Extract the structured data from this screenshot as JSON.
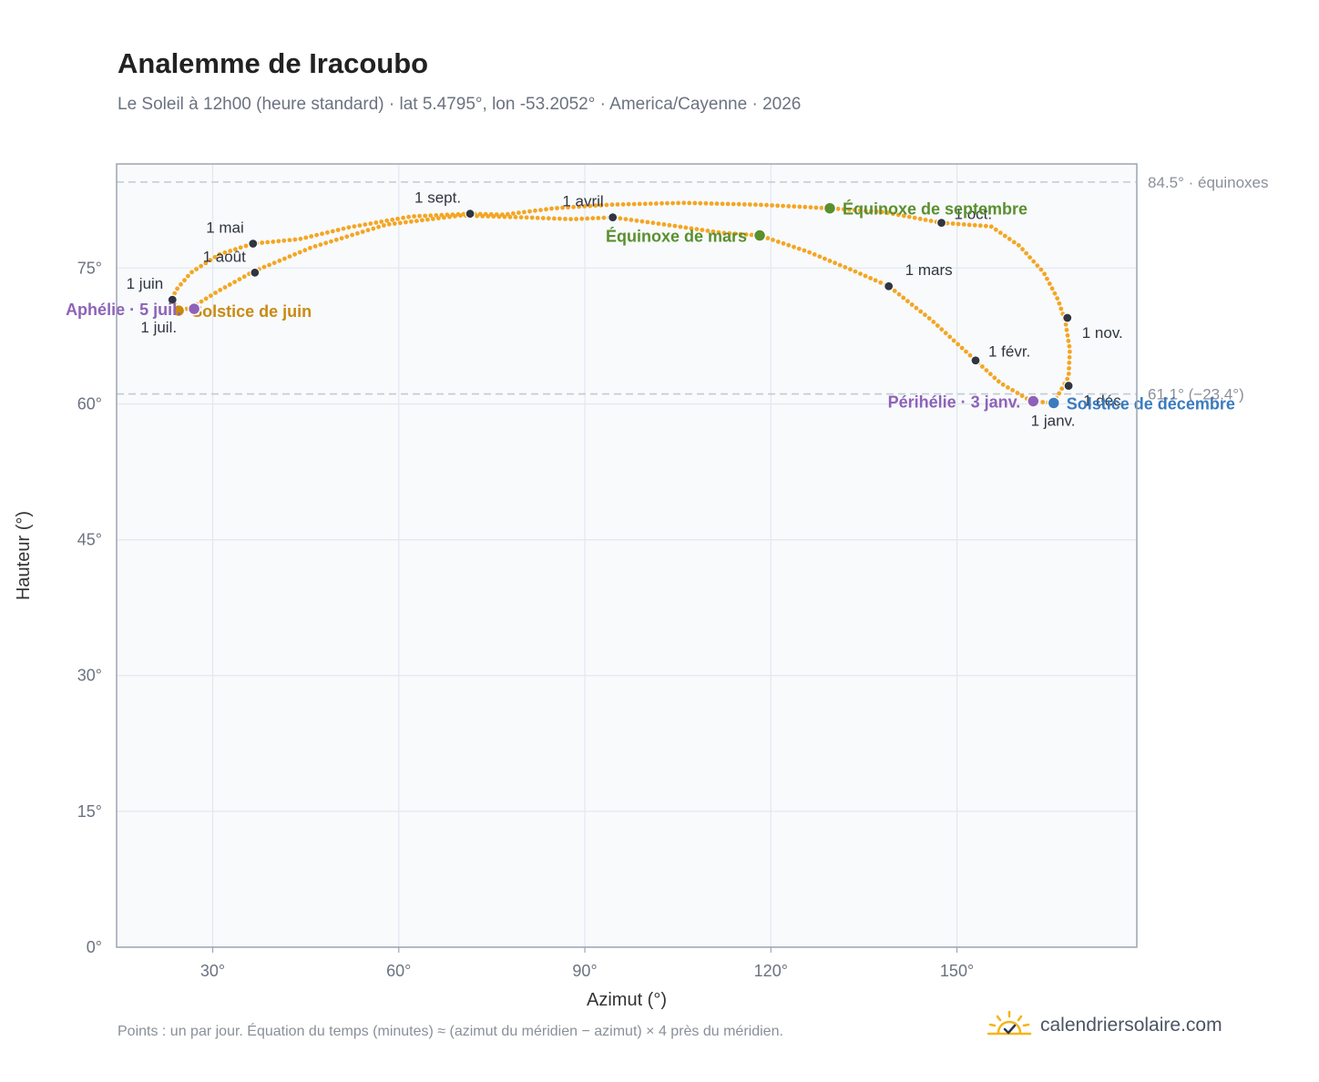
{
  "header": {
    "title": "Analemme de Iracoubo",
    "subtitle": "Le Soleil à 12h00 (heure standard) · lat 5.4795°, lon -53.2052° · America/Cayenne · 2026"
  },
  "footer": {
    "note": "Points : un par jour. Équation du temps (minutes) ≈ (azimut du méridien − azimut) × 4 près du méridien.",
    "brand": "calendriersolaire.com",
    "brand_icon": "sun-check-icon"
  },
  "chart_data": {
    "type": "scatter",
    "xlabel": "Azimut (°)",
    "ylabel": "Hauteur (°)",
    "xlim": [
      14.5,
      179
    ],
    "ylim": [
      0,
      86.5
    ],
    "x_ticks": [
      30,
      60,
      90,
      120,
      150
    ],
    "x_tick_labels": [
      "30°",
      "60°",
      "90°",
      "120°",
      "150°"
    ],
    "y_ticks": [
      0,
      15,
      30,
      45,
      60,
      75
    ],
    "y_tick_labels": [
      "0°",
      "15°",
      "30°",
      "45°",
      "60°",
      "75°"
    ],
    "grid": true,
    "reference_lines": [
      {
        "y": 84.5,
        "label": "84.5° · équinoxes"
      },
      {
        "y": 61.1,
        "label": "61.1° (−23.4°)"
      }
    ],
    "series": [
      {
        "style": "daily-dots",
        "color": "#f4a623",
        "path": [
          [
            165.6,
            60.1
          ],
          [
            168.0,
            63.0
          ],
          [
            168.2,
            66.0
          ],
          [
            167.5,
            69.0
          ],
          [
            166.3,
            71.5
          ],
          [
            164.0,
            74.5
          ],
          [
            160.0,
            77.5
          ],
          [
            155.5,
            79.6
          ],
          [
            147.5,
            80.0
          ],
          [
            138.0,
            81.2
          ],
          [
            129.5,
            81.6
          ],
          [
            118.0,
            82.0
          ],
          [
            106.0,
            82.2
          ],
          [
            94.0,
            82.0
          ],
          [
            85.0,
            81.6
          ],
          [
            77.0,
            80.9
          ],
          [
            71.5,
            81.0
          ],
          [
            62.0,
            80.7
          ],
          [
            52.0,
            79.5
          ],
          [
            44.0,
            78.2
          ],
          [
            36.5,
            77.7
          ],
          [
            31.0,
            76.5
          ],
          [
            26.5,
            74.5
          ],
          [
            24.0,
            72.5
          ],
          [
            23.5,
            71.5
          ],
          [
            24.5,
            70.3
          ],
          [
            26.5,
            70.6
          ],
          [
            31.0,
            72.5
          ],
          [
            36.5,
            74.6
          ],
          [
            46.0,
            77.3
          ],
          [
            58.0,
            79.8
          ],
          [
            70.0,
            80.8
          ],
          [
            80.0,
            80.6
          ],
          [
            88.0,
            80.4
          ],
          [
            94.5,
            80.6
          ],
          [
            103.0,
            79.8
          ],
          [
            112.0,
            78.9
          ],
          [
            118.2,
            78.6
          ],
          [
            126.0,
            76.8
          ],
          [
            133.0,
            74.8
          ],
          [
            139.0,
            73.0
          ],
          [
            146.0,
            69.2
          ],
          [
            153.0,
            64.8
          ],
          [
            157.0,
            62.3
          ],
          [
            162.0,
            60.3
          ],
          [
            165.6,
            60.1
          ]
        ]
      }
    ],
    "month_markers": [
      {
        "label": "1 janv.",
        "x": 165.5,
        "y": 60.0,
        "anchor": "below"
      },
      {
        "label": "1 févr.",
        "x": 153.0,
        "y": 64.8,
        "anchor": "right"
      },
      {
        "label": "1 mars",
        "x": 139.0,
        "y": 73.0,
        "anchor": "above-right"
      },
      {
        "label": "1 avril",
        "x": 94.5,
        "y": 80.6,
        "anchor": "above-left"
      },
      {
        "label": "1 mai",
        "x": 36.5,
        "y": 77.7,
        "anchor": "above-left"
      },
      {
        "label": "1 juin",
        "x": 23.5,
        "y": 71.5,
        "anchor": "above-left"
      },
      {
        "label": "1 juil.",
        "x": 24.5,
        "y": 70.3,
        "anchor": "below-left"
      },
      {
        "label": "1 août",
        "x": 36.8,
        "y": 74.5,
        "anchor": "above-left"
      },
      {
        "label": "1 sept.",
        "x": 71.5,
        "y": 81.0,
        "anchor": "above-left"
      },
      {
        "label": "1 oct.",
        "x": 147.5,
        "y": 80.0,
        "anchor": "right"
      },
      {
        "label": "1 nov.",
        "x": 167.8,
        "y": 69.5,
        "anchor": "below-right"
      },
      {
        "label": "1 déc.",
        "x": 168.0,
        "y": 62.0,
        "anchor": "below-right"
      }
    ],
    "events": [
      {
        "label": "Équinoxe de mars",
        "x": 118.2,
        "y": 78.6,
        "color": "#5a8f2e",
        "label_side": "left"
      },
      {
        "label": "Équinoxe de septembre",
        "x": 129.5,
        "y": 81.6,
        "color": "#5a8f2e",
        "label_side": "right"
      },
      {
        "label": "Solstice de juin",
        "x": 24.5,
        "y": 70.3,
        "color": "#c98a12",
        "label_side": "right"
      },
      {
        "label": "Solstice de décembre",
        "x": 165.6,
        "y": 60.1,
        "color": "#3a7bbf",
        "label_side": "right"
      },
      {
        "label": "Aphélie · 5 juil.",
        "x": 27.0,
        "y": 70.5,
        "color": "#8e62b8",
        "label_side": "left"
      },
      {
        "label": "Périhélie · 3 janv.",
        "x": 162.3,
        "y": 60.3,
        "color": "#8e62b8",
        "label_side": "left"
      }
    ]
  }
}
